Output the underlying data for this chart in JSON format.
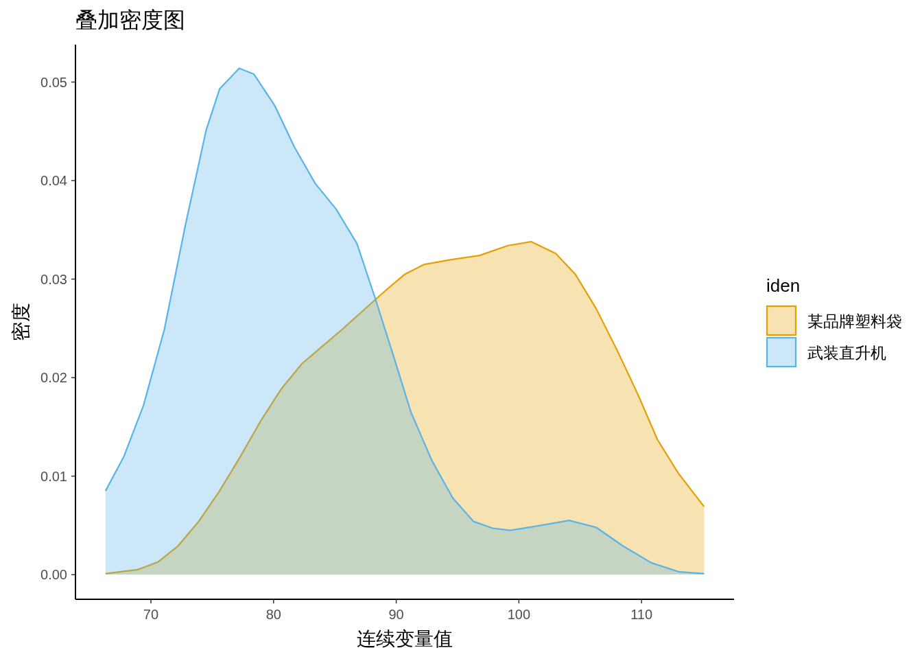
{
  "chart_data": {
    "type": "area",
    "title": "叠加密度图",
    "xlabel": "连续变量值",
    "ylabel": "密度",
    "legend_title": "iden",
    "legend": "right",
    "grid": false,
    "xlim": [
      63.85,
      117.54
    ],
    "ylim": [
      -0.0025,
      0.0538
    ],
    "xticks": [
      70,
      80,
      90,
      100,
      110
    ],
    "yticks": [
      {
        "value": 0,
        "label": "0.00"
      },
      {
        "value": 0.01,
        "label": "0.01"
      },
      {
        "value": 0.02,
        "label": "0.02"
      },
      {
        "value": 0.03,
        "label": "0.03"
      },
      {
        "value": 0.04,
        "label": "0.04"
      },
      {
        "value": 0.05,
        "label": "0.05"
      }
    ],
    "series": [
      {
        "name": "某品牌塑料袋",
        "color": "#E69F00",
        "x": [
          66.3,
          68.9,
          70.6,
          72.2,
          73.9,
          75.6,
          77.3,
          78.9,
          80.6,
          82.3,
          84.0,
          85.6,
          87.3,
          89.0,
          90.7,
          92.3,
          94.6,
          96.8,
          99.1,
          101.0,
          103.0,
          104.6,
          106.3,
          108.0,
          109.7,
          111.3,
          113.0,
          115.1
        ],
        "values": [
          0.0001,
          0.0005,
          0.0013,
          0.0029,
          0.0054,
          0.0085,
          0.012,
          0.0155,
          0.0188,
          0.0214,
          0.0232,
          0.0249,
          0.0268,
          0.0287,
          0.0305,
          0.0315,
          0.032,
          0.0324,
          0.0334,
          0.0338,
          0.0326,
          0.0305,
          0.027,
          0.0228,
          0.0183,
          0.0137,
          0.0103,
          0.0069
        ]
      },
      {
        "name": "武装直升机",
        "color": "#56B4E9",
        "x": [
          66.3,
          67.8,
          69.4,
          71.1,
          72.8,
          74.5,
          75.6,
          77.2,
          78.4,
          80.1,
          81.7,
          83.4,
          85.1,
          86.8,
          88.3,
          89.8,
          91.2,
          92.9,
          94.6,
          96.3,
          97.9,
          99.3,
          101.3,
          104.1,
          106.3,
          108.5,
          110.8,
          113.0,
          115.1
        ],
        "values": [
          0.0085,
          0.012,
          0.0172,
          0.0249,
          0.0354,
          0.0451,
          0.0493,
          0.0514,
          0.0508,
          0.0476,
          0.0434,
          0.0397,
          0.0371,
          0.0336,
          0.028,
          0.0221,
          0.0165,
          0.0116,
          0.0078,
          0.0054,
          0.0047,
          0.0045,
          0.0049,
          0.0055,
          0.0048,
          0.0029,
          0.0012,
          0.0003,
          0.0001
        ]
      }
    ]
  }
}
